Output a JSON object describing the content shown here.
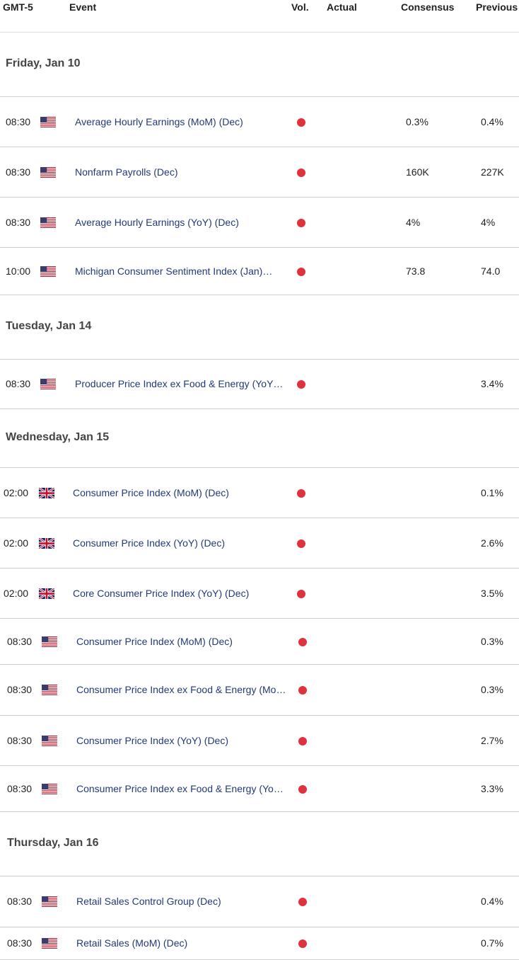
{
  "header": {
    "timezone": "GMT-5",
    "event": "Event",
    "vol": "Vol.",
    "actual": "Actual",
    "consensus": "Consensus",
    "previous": "Previous"
  },
  "impact_color": "#e0323c",
  "days": [
    {
      "title": "Friday, Jan 10",
      "events": [
        {
          "time": "08:30",
          "flag": "us-flag-icon",
          "name": "Average Hourly Earnings (MoM) (Dec)",
          "actual": "",
          "consensus": "0.3%",
          "previous": "0.4%"
        },
        {
          "time": "08:30",
          "flag": "us-flag-icon",
          "name": "Nonfarm Payrolls (Dec)",
          "actual": "",
          "consensus": "160K",
          "previous": "227K"
        },
        {
          "time": "08:30",
          "flag": "us-flag-icon",
          "name": "Average Hourly Earnings (YoY) (Dec)",
          "actual": "",
          "consensus": "4%",
          "previous": "4%"
        },
        {
          "time": "10:00",
          "flag": "us-flag-icon",
          "name": "Michigan Consumer Sentiment Index (Jan)…",
          "actual": "",
          "consensus": "73.8",
          "previous": "74.0"
        }
      ]
    },
    {
      "title": "Tuesday, Jan 14",
      "events": [
        {
          "time": "08:30",
          "flag": "us-flag-icon",
          "name": "Producer Price Index ex Food & Energy (YoY…",
          "actual": "",
          "consensus": "",
          "previous": "3.4%"
        }
      ]
    },
    {
      "title": "Wednesday, Jan 15",
      "events": [
        {
          "time": "02:00",
          "flag": "uk-flag-icon",
          "name": "Consumer Price Index (MoM) (Dec)",
          "actual": "",
          "consensus": "",
          "previous": "0.1%"
        },
        {
          "time": "02:00",
          "flag": "uk-flag-icon",
          "name": "Consumer Price Index (YoY) (Dec)",
          "actual": "",
          "consensus": "",
          "previous": "2.6%"
        },
        {
          "time": "02:00",
          "flag": "uk-flag-icon",
          "name": "Core Consumer Price Index (YoY) (Dec)",
          "actual": "",
          "consensus": "",
          "previous": "3.5%"
        },
        {
          "time": "08:30",
          "flag": "us-flag-icon",
          "name": "Consumer Price Index (MoM) (Dec)",
          "actual": "",
          "consensus": "",
          "previous": "0.3%"
        },
        {
          "time": "08:30",
          "flag": "us-flag-icon",
          "name": "Consumer Price Index ex Food & Energy (Mo…",
          "actual": "",
          "consensus": "",
          "previous": "0.3%"
        },
        {
          "time": "08:30",
          "flag": "us-flag-icon",
          "name": "Consumer Price Index (YoY) (Dec)",
          "actual": "",
          "consensus": "",
          "previous": "2.7%"
        },
        {
          "time": "08:30",
          "flag": "us-flag-icon",
          "name": "Consumer Price Index ex Food & Energy (Yo…",
          "actual": "",
          "consensus": "",
          "previous": "3.3%"
        }
      ]
    },
    {
      "title": "Thursday, Jan 16",
      "events": [
        {
          "time": "08:30",
          "flag": "us-flag-icon",
          "name": "Retail Sales Control Group (Dec)",
          "actual": "",
          "consensus": "",
          "previous": "0.4%"
        },
        {
          "time": "08:30",
          "flag": "us-flag-icon",
          "name": "Retail Sales (MoM) (Dec)",
          "actual": "",
          "consensus": "",
          "previous": "0.7%"
        }
      ]
    }
  ]
}
